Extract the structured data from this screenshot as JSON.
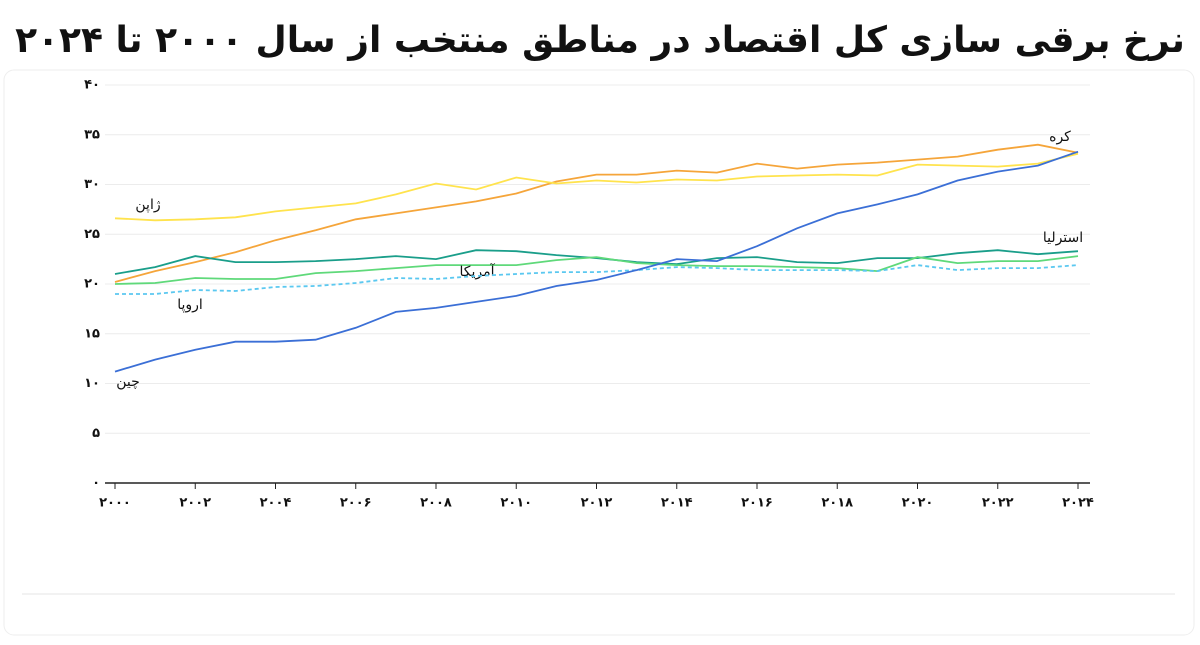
{
  "chart_data": {
    "type": "line",
    "title": "نرخ برقی سازی کل اقتصاد در مناطق منتخب از سال ۲۰۰۰ تا ۲۰۲۴",
    "x": [
      2000,
      2001,
      2002,
      2003,
      2004,
      2005,
      2006,
      2007,
      2008,
      2009,
      2010,
      2011,
      2012,
      2013,
      2014,
      2015,
      2016,
      2017,
      2018,
      2019,
      2020,
      2021,
      2022,
      2023,
      2024
    ],
    "xlim": [
      2000,
      2024
    ],
    "xticks": [
      {
        "value": 2000,
        "label": "۲۰۰۰"
      },
      {
        "value": 2002,
        "label": "۲۰۰۲"
      },
      {
        "value": 2004,
        "label": "۲۰۰۴"
      },
      {
        "value": 2006,
        "label": "۲۰۰۶"
      },
      {
        "value": 2008,
        "label": "۲۰۰۸"
      },
      {
        "value": 2010,
        "label": "۲۰۱۰"
      },
      {
        "value": 2012,
        "label": "۲۰۱۲"
      },
      {
        "value": 2014,
        "label": "۲۰۱۴"
      },
      {
        "value": 2016,
        "label": "۲۰۱۶"
      },
      {
        "value": 2018,
        "label": "۲۰۱۸"
      },
      {
        "value": 2020,
        "label": "۲۰۲۰"
      },
      {
        "value": 2022,
        "label": "۲۰۲۲"
      },
      {
        "value": 2024,
        "label": "۲۰۲۴"
      }
    ],
    "ylim": [
      0,
      40
    ],
    "yticks": [
      {
        "value": 0,
        "label": "۰"
      },
      {
        "value": 5,
        "label": "۵"
      },
      {
        "value": 10,
        "label": "۱۰"
      },
      {
        "value": 15,
        "label": "۱۵"
      },
      {
        "value": 20,
        "label": "۲۰"
      },
      {
        "value": 25,
        "label": "۲۵"
      },
      {
        "value": 30,
        "label": "۳۰"
      },
      {
        "value": 35,
        "label": "۳۵"
      },
      {
        "value": 40,
        "label": "۴۰"
      }
    ],
    "grid": true,
    "series": [
      {
        "name": "کره",
        "color": "#f5a53a",
        "values": [
          20.2,
          21.3,
          22.2,
          23.2,
          24.4,
          25.4,
          26.5,
          27.1,
          27.7,
          28.3,
          29.1,
          30.3,
          31.0,
          31.0,
          31.4,
          31.2,
          32.1,
          31.6,
          32.0,
          32.2,
          32.5,
          32.8,
          33.5,
          34.0,
          33.2
        ]
      },
      {
        "name": "ژاپن",
        "color": "#ffe34d",
        "values": [
          26.6,
          26.4,
          26.5,
          26.7,
          27.3,
          27.7,
          28.1,
          29.0,
          30.1,
          29.5,
          30.7,
          30.1,
          30.4,
          30.2,
          30.5,
          30.4,
          30.8,
          30.9,
          31.0,
          30.9,
          32.0,
          31.9,
          31.8,
          32.1,
          33.1
        ]
      },
      {
        "name": "استرلیا",
        "color": "#1a9e8a",
        "values": [
          21.0,
          21.7,
          22.8,
          22.2,
          22.2,
          22.3,
          22.5,
          22.8,
          22.5,
          23.4,
          23.3,
          22.9,
          22.6,
          22.2,
          22.0,
          22.6,
          22.7,
          22.2,
          22.1,
          22.6,
          22.6,
          23.1,
          23.4,
          23.0,
          23.3
        ]
      },
      {
        "name": "آمریکا",
        "color": "#5fd97a",
        "values": [
          20.0,
          20.1,
          20.6,
          20.5,
          20.5,
          21.1,
          21.3,
          21.6,
          21.9,
          21.9,
          21.9,
          22.4,
          22.7,
          22.1,
          21.9,
          21.8,
          21.8,
          21.7,
          21.6,
          21.3,
          22.7,
          22.1,
          22.3,
          22.3,
          22.8
        ]
      },
      {
        "name": "اروپا",
        "color": "#5bc8f0",
        "dashed": true,
        "values": [
          19.0,
          19.0,
          19.4,
          19.3,
          19.7,
          19.8,
          20.1,
          20.6,
          20.5,
          20.8,
          21.0,
          21.2,
          21.2,
          21.4,
          21.7,
          21.6,
          21.4,
          21.4,
          21.4,
          21.3,
          21.9,
          21.4,
          21.6,
          21.6,
          21.9
        ]
      },
      {
        "name": "چین",
        "color": "#3b6fd6",
        "values": [
          11.2,
          12.4,
          13.4,
          14.2,
          14.2,
          14.4,
          15.6,
          17.2,
          17.6,
          18.2,
          18.8,
          19.8,
          20.4,
          21.4,
          22.5,
          22.3,
          23.8,
          25.6,
          27.1,
          28.0,
          29.0,
          30.4,
          31.3,
          31.9,
          33.3
        ]
      }
    ]
  }
}
